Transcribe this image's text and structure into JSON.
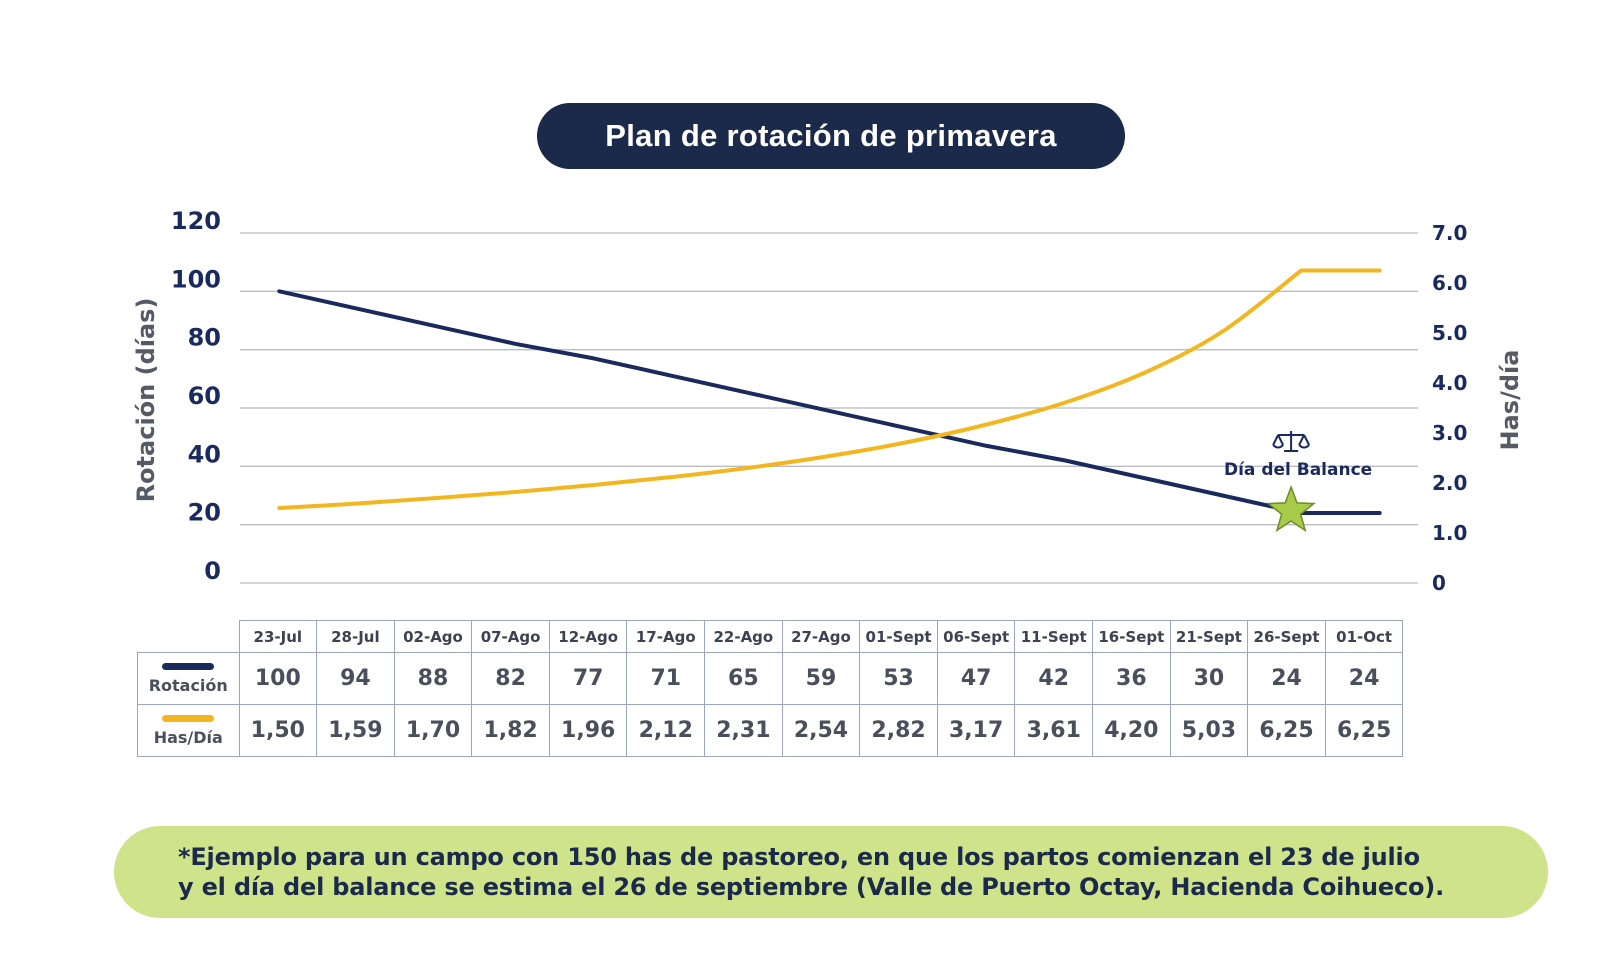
{
  "title": "Plan de rotación de primavera",
  "chart_data": {
    "type": "line",
    "categories": [
      "23-Jul",
      "28-Jul",
      "02-Ago",
      "07-Ago",
      "12-Ago",
      "17-Ago",
      "22-Ago",
      "27-Ago",
      "01-Sept",
      "06-Sept",
      "11-Sept",
      "16-Sept",
      "21-Sept",
      "26-Sept",
      "01-Oct"
    ],
    "series": [
      {
        "name": "Rotación",
        "axis": "left",
        "color": "#1b2a5e",
        "values": [
          100,
          94,
          88,
          82,
          77,
          71,
          65,
          59,
          53,
          47,
          42,
          36,
          30,
          24,
          24
        ]
      },
      {
        "name": "Has/Día",
        "axis": "right",
        "color": "#f2b720",
        "values": [
          1.5,
          1.59,
          1.7,
          1.82,
          1.96,
          2.12,
          2.31,
          2.54,
          2.82,
          3.17,
          3.61,
          4.2,
          5.03,
          6.25,
          6.25
        ]
      }
    ],
    "ylabel_left": "Rotación (días)",
    "ylabel_right": "Has/día",
    "ylim_left": [
      0,
      120
    ],
    "ylim_right": [
      0,
      7.0
    ],
    "yticks_left": [
      "0",
      "20",
      "40",
      "60",
      "80",
      "100",
      "120"
    ],
    "yticks_right": [
      "0",
      "1.0",
      "2.0",
      "3.0",
      "4.0",
      "5.0",
      "6.0",
      "7.0"
    ],
    "grid": true,
    "annotation": {
      "label": "Día del Balance",
      "category": "26-Sept",
      "value": 24,
      "marker": "star",
      "icon": "balance-scale-icon"
    }
  },
  "table": {
    "rows": [
      {
        "label": "Rotación",
        "color": "#1b2a5e",
        "values": [
          "100",
          "94",
          "88",
          "82",
          "77",
          "71",
          "65",
          "59",
          "53",
          "47",
          "42",
          "36",
          "30",
          "24",
          "24"
        ]
      },
      {
        "label": "Has/Día",
        "color": "#f2b720",
        "values": [
          "1,50",
          "1,59",
          "1,70",
          "1,82",
          "1,96",
          "2,12",
          "2,31",
          "2,54",
          "2,82",
          "3,17",
          "3,61",
          "4,20",
          "5,03",
          "6,25",
          "6,25"
        ]
      }
    ]
  },
  "footnote": {
    "line1": "*Ejemplo para un campo con 150 has de pastoreo, en que los partos comienzan el 23 de julio",
    "line2": "y el día del balance se estima el 26 de septiembre (Valle de Puerto Octay, Hacienda Coihueco)."
  },
  "colors": {
    "navy": "#1b2a4a",
    "rotation_line": "#1b2a5e",
    "has_line": "#f2b720",
    "footnote_bg": "#cfe38a",
    "star": "#a8cc4a"
  }
}
